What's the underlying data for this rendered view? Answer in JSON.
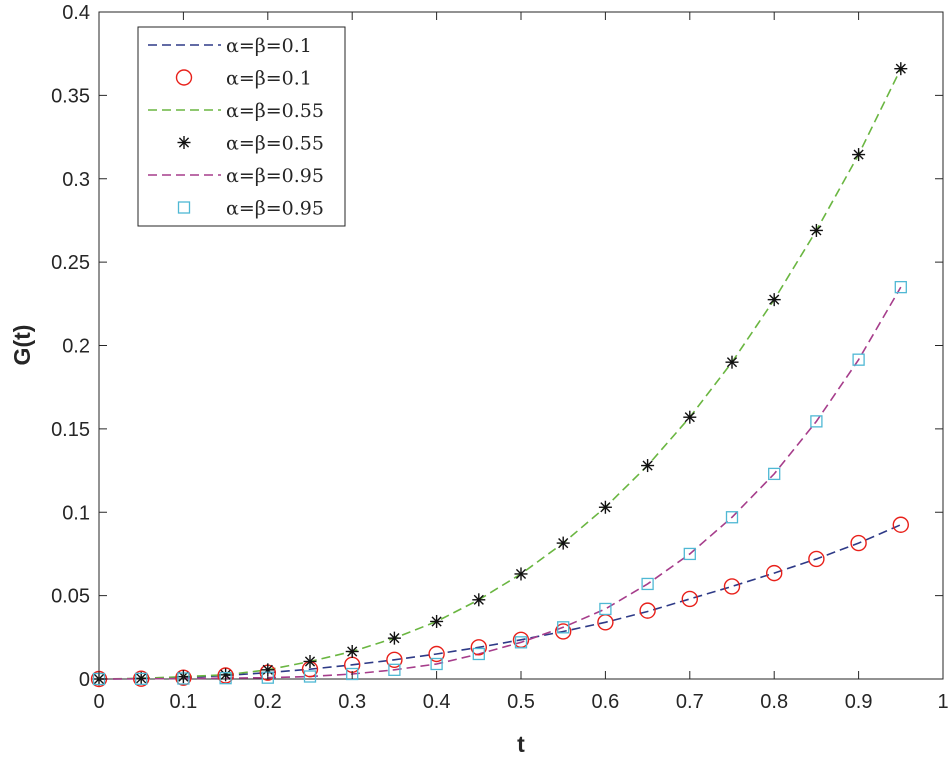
{
  "chart_data": {
    "type": "line",
    "title": "",
    "xlabel": "t",
    "ylabel": "G(t)",
    "xlim": [
      0,
      1
    ],
    "ylim": [
      0,
      0.4
    ],
    "grid": false,
    "legend_position": "top-left",
    "x_ticks": [
      0,
      0.1,
      0.2,
      0.3,
      0.4,
      0.5,
      0.6,
      0.7,
      0.8,
      0.9,
      1
    ],
    "x_tick_labels": [
      "0",
      "0.1",
      "0.2",
      "0.3",
      "0.4",
      "0.5",
      "0.6",
      "0.7",
      "0.8",
      "0.9",
      "1"
    ],
    "y_ticks": [
      0,
      0.05,
      0.1,
      0.15,
      0.2,
      0.25,
      0.3,
      0.35,
      0.4
    ],
    "y_tick_labels": [
      "0",
      "0.05",
      "0.1",
      "0.15",
      "0.2",
      "0.25",
      "0.3",
      "0.35",
      "0.4"
    ],
    "x": [
      0,
      0.05,
      0.1,
      0.15,
      0.2,
      0.25,
      0.3,
      0.35,
      0.4,
      0.45,
      0.5,
      0.55,
      0.6,
      0.65,
      0.7,
      0.75,
      0.8,
      0.85,
      0.9,
      0.95
    ],
    "series": [
      {
        "name": "α=β=0.1",
        "kind": "dashed-line",
        "color": "#2e3a87",
        "values": [
          0,
          0.0002,
          0.0008,
          0.0021,
          0.0038,
          0.0059,
          0.0085,
          0.0115,
          0.015,
          0.019,
          0.0235,
          0.0285,
          0.034,
          0.0405,
          0.048,
          0.0555,
          0.0635,
          0.072,
          0.0815,
          0.0925
        ]
      },
      {
        "name": "α=β=0.1",
        "kind": "circle-markers",
        "color": "#e8201a",
        "values": [
          0,
          0.0002,
          0.0008,
          0.0021,
          0.0038,
          0.0059,
          0.0085,
          0.0115,
          0.015,
          0.019,
          0.0235,
          0.0285,
          0.034,
          0.041,
          0.048,
          0.0555,
          0.0635,
          0.072,
          0.0815,
          0.0925
        ]
      },
      {
        "name": "α=β=0.55",
        "kind": "dashed-line",
        "color": "#6ab641",
        "values": [
          0,
          0.0004,
          0.0014,
          0.0025,
          0.0055,
          0.0105,
          0.0165,
          0.0245,
          0.0345,
          0.0475,
          0.063,
          0.0815,
          0.103,
          0.128,
          0.157,
          0.19,
          0.2275,
          0.269,
          0.3145,
          0.366
        ]
      },
      {
        "name": "α=β=0.55",
        "kind": "asterisk-markers",
        "color": "#111111",
        "values": [
          0,
          0.0004,
          0.0014,
          0.0025,
          0.0055,
          0.0105,
          0.0165,
          0.0245,
          0.0345,
          0.0475,
          0.063,
          0.0815,
          0.103,
          0.128,
          0.157,
          0.19,
          0.2275,
          0.269,
          0.3145,
          0.366
        ]
      },
      {
        "name": "α=β=0.95",
        "kind": "dashed-line",
        "color": "#a63d8b",
        "values": [
          0,
          0.0001,
          0.0003,
          0.0005,
          0.0008,
          0.0015,
          0.003,
          0.0055,
          0.009,
          0.015,
          0.022,
          0.031,
          0.042,
          0.057,
          0.075,
          0.097,
          0.123,
          0.1545,
          0.1915,
          0.235
        ]
      },
      {
        "name": "α=β=0.95",
        "kind": "square-markers",
        "color": "#4fb8d4",
        "values": [
          0,
          0.0001,
          0.0003,
          0.0005,
          0.0008,
          0.0015,
          0.003,
          0.0055,
          0.009,
          0.015,
          0.022,
          0.031,
          0.042,
          0.057,
          0.075,
          0.097,
          0.123,
          0.1545,
          0.1915,
          0.235
        ]
      }
    ]
  }
}
